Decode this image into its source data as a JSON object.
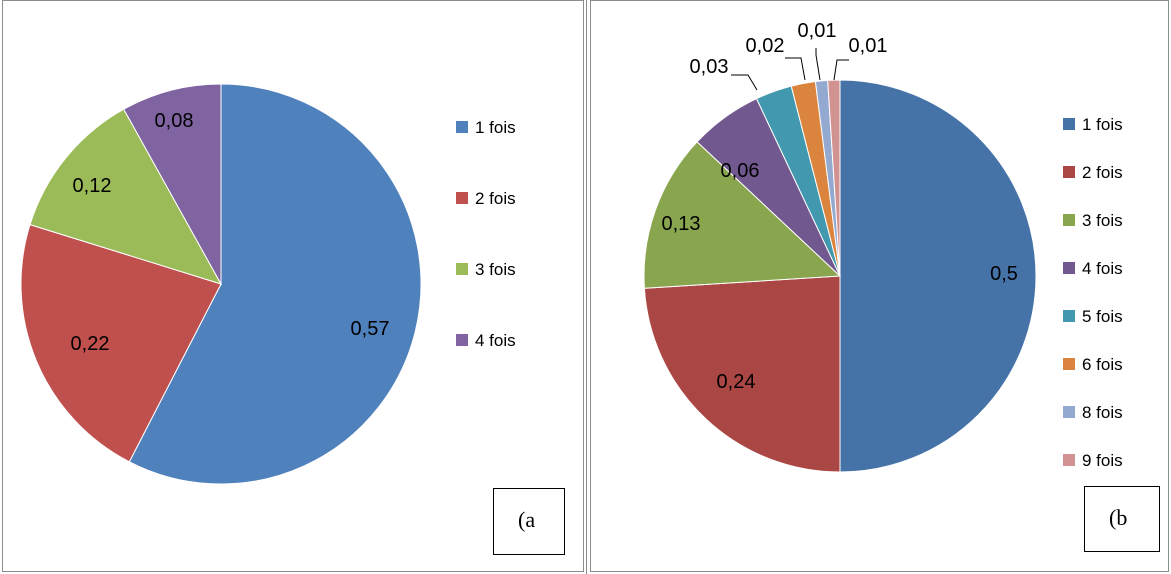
{
  "chart_data": [
    {
      "type": "pie",
      "panel_label": "(a",
      "categories": [
        "1 fois",
        "2 fois",
        "3 fois",
        "4 fois"
      ],
      "values": [
        0.57,
        0.22,
        0.12,
        0.08
      ],
      "data_labels": [
        "0,57",
        "0,22",
        "0,12",
        "0,08"
      ],
      "colors": [
        "#4f81bd",
        "#c0504d",
        "#9bbb59",
        "#8064a2"
      ],
      "legend_position": "right"
    },
    {
      "type": "pie",
      "panel_label": "(b",
      "categories": [
        "1 fois",
        "2 fois",
        "3 fois",
        "4 fois",
        "5 fois",
        "6 fois",
        "8 fois",
        "9 fois"
      ],
      "values": [
        0.5,
        0.24,
        0.13,
        0.06,
        0.03,
        0.02,
        0.01,
        0.01
      ],
      "data_labels": [
        "0,5",
        "0,24",
        "0,13",
        "0,06",
        "0,03",
        "0,02",
        "0,01",
        "0,01"
      ],
      "colors": [
        "#4572a7",
        "#aa4643",
        "#89a54e",
        "#71588f",
        "#4198af",
        "#db843d",
        "#93a9cf",
        "#d19392"
      ],
      "legend_position": "right"
    }
  ]
}
